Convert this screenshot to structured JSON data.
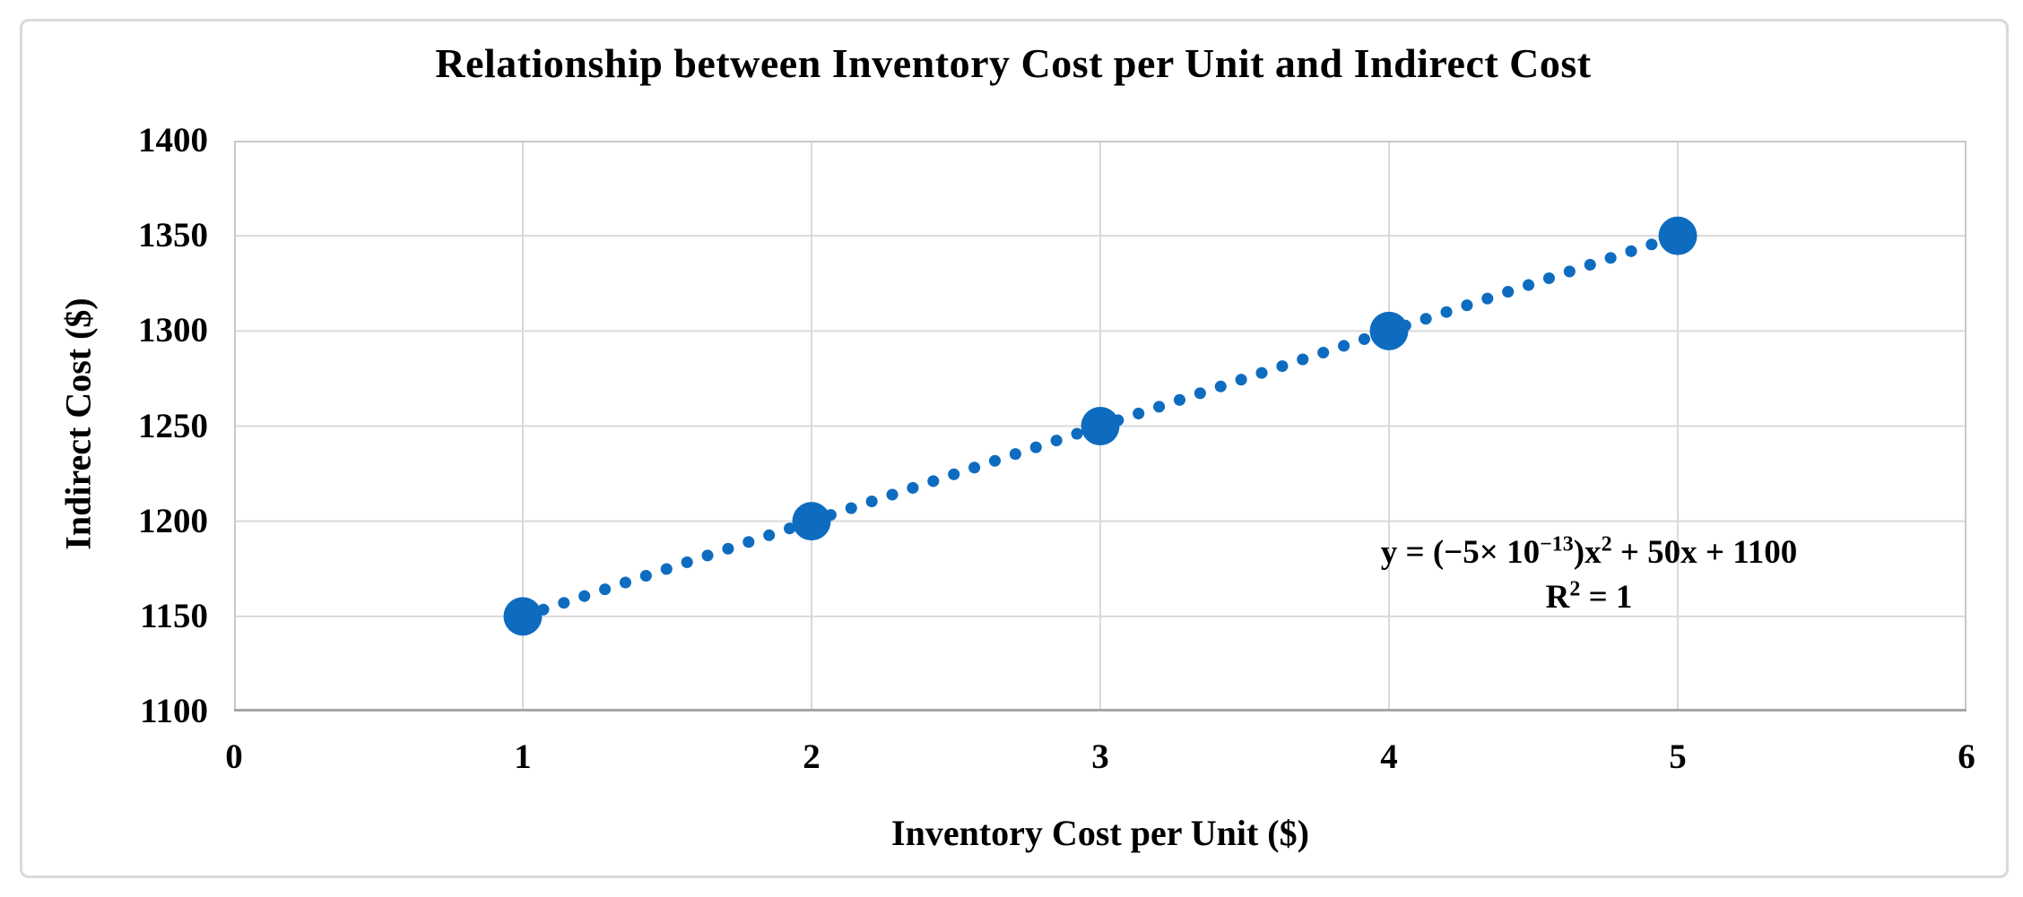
{
  "chart": {
    "title": "Relationship between Inventory Cost per Unit and Indirect Cost",
    "x_axis_title": "Inventory Cost per Unit ($)",
    "y_axis_title": "Indirect Cost ($)",
    "colors": {
      "marker": "#0e6cc0",
      "trendline": "#0e6cc0",
      "gridline": "#d9d9d9",
      "plot_border": "#c9c9c9",
      "axis_line": "#a6a6a6",
      "frame_border": "#d9d9d9",
      "text": "#000000"
    },
    "equation": {
      "line1_parts": [
        {
          "t": "y = (−5× 10",
          "sup": false
        },
        {
          "t": "−13",
          "sup": true
        },
        {
          "t": ")x",
          "sup": false
        },
        {
          "t": "2",
          "sup": true
        },
        {
          "t": " + 50x + 1100",
          "sup": false
        }
      ],
      "line2_parts": [
        {
          "t": "R",
          "sup": false
        },
        {
          "t": "2",
          "sup": true
        },
        {
          "t": " = 1",
          "sup": false
        }
      ]
    }
  },
  "chart_data": {
    "type": "scatter",
    "title": "Relationship between Inventory Cost per Unit and Indirect Cost",
    "xlabel": "Inventory Cost per Unit ($)",
    "ylabel": "Indirect Cost ($)",
    "x": [
      1,
      2,
      3,
      4,
      5
    ],
    "y": [
      1150,
      1200,
      1250,
      1300,
      1350
    ],
    "xlim": [
      0,
      6
    ],
    "ylim": [
      1100,
      1400
    ],
    "x_ticks": [
      "0",
      "1",
      "2",
      "3",
      "4",
      "5",
      "6"
    ],
    "y_ticks": [
      "1100",
      "1150",
      "1200",
      "1250",
      "1300",
      "1350",
      "1400"
    ],
    "grid": true,
    "legend": "none",
    "marker_style": "filled-circle",
    "trendline": {
      "type": "polynomial",
      "style": "dotted",
      "from": {
        "x": 1,
        "y": 1150
      },
      "to": {
        "x": 5,
        "y": 1350
      },
      "label": "y = (−5× 10⁻¹³)x² + 50x + 1100",
      "r_squared_label": "R² = 1"
    }
  }
}
